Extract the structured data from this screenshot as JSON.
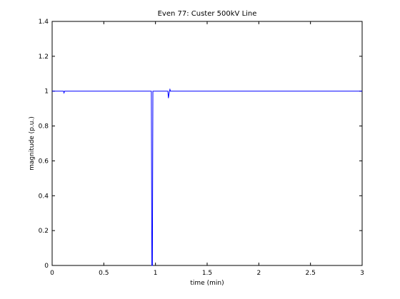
{
  "chart_data": {
    "type": "line",
    "title": "Even 77: Custer 500kV Line",
    "xlabel": "time (min)",
    "ylabel": "magnitude (p.u.)",
    "xlim": [
      0,
      3
    ],
    "ylim": [
      0,
      1.4
    ],
    "xticks": [
      0,
      0.5,
      1,
      1.5,
      2,
      2.5,
      3
    ],
    "xtick_labels": [
      "0",
      "0.5",
      "1",
      "1.5",
      "2",
      "2.5",
      "3"
    ],
    "yticks": [
      0,
      0.2,
      0.4,
      0.6,
      0.8,
      1,
      1.2,
      1.4
    ],
    "ytick_labels": [
      "0",
      "0.2",
      "0.4",
      "0.6",
      "0.8",
      "1",
      "1.2",
      "1.4"
    ],
    "grid": false,
    "series": [
      {
        "color": "#0000ff",
        "x": [
          0,
          0.11,
          0.115,
          0.12,
          0.96,
          0.965,
          0.97,
          0.975,
          1.0,
          1.12,
          1.125,
          1.13,
          1.135,
          1.14,
          1.145,
          1.15,
          3.0
        ],
        "y": [
          1.0,
          1.0,
          0.99,
          1.0,
          1.0,
          0.0,
          0.0,
          1.0,
          1.0,
          1.0,
          0.96,
          0.98,
          1.0,
          1.01,
          1.0,
          1.0,
          1.0
        ]
      }
    ]
  }
}
